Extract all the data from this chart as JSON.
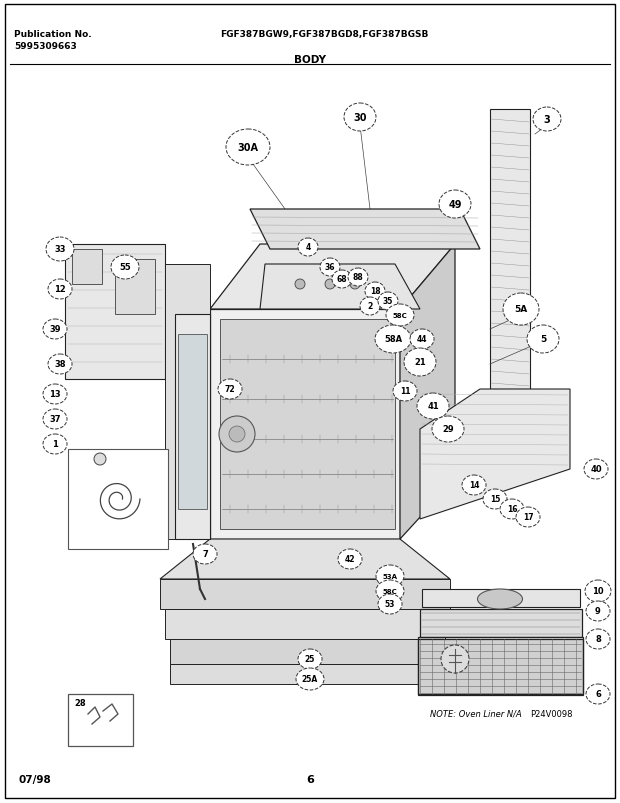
{
  "title": "BODY",
  "pub_no_label": "Publication No.",
  "pub_no_value": "5995309663",
  "model_numbers": "FGF387BGW9,FGF387BGD8,FGF387BGSB",
  "date_code": "07/98",
  "page_number": "6",
  "note_text": "NOTE: Oven Liner N/A",
  "diagram_code": "P24V0098",
  "bg_color": "#ffffff",
  "border_color": "#000000",
  "text_color": "#000000",
  "fig_width": 6.2,
  "fig_height": 8.04,
  "dpi": 100
}
